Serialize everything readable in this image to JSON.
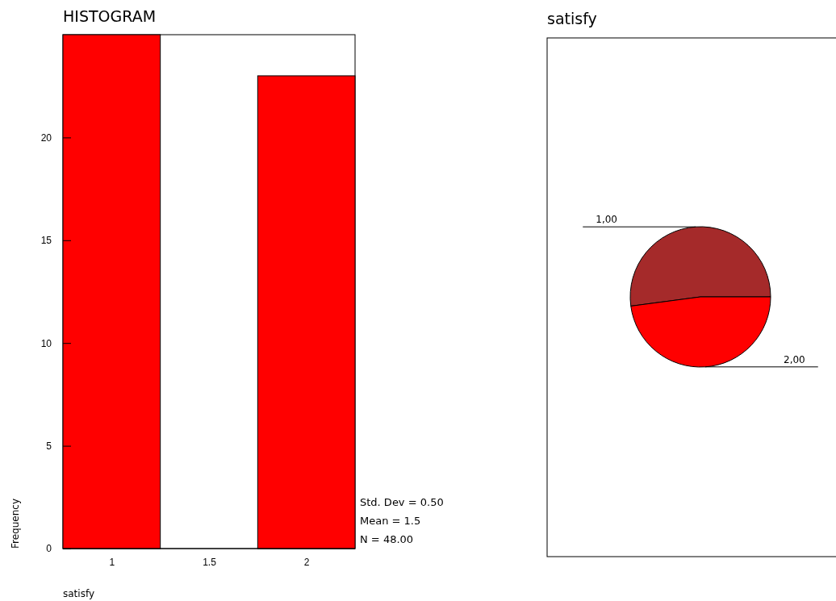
{
  "chart_data": [
    {
      "type": "histogram",
      "title": "HISTOGRAM",
      "xlabel": "satisfy",
      "ylabel": "Frequency",
      "bins": [
        0.75,
        1.25,
        1.75,
        2.25
      ],
      "values": [
        25,
        0,
        23
      ],
      "color": "#ff0000",
      "xlim": [
        0.75,
        2.25
      ],
      "xticks": [
        1,
        1.5,
        2
      ],
      "ylim": [
        0,
        25
      ],
      "yticks": [
        0,
        5,
        10,
        15,
        20
      ],
      "annotations": [
        "Std. Dev = 0.50",
        "Mean = 1.5",
        "N = 48.00"
      ]
    },
    {
      "type": "pie",
      "title": "satisfy",
      "categories": [
        "1,00",
        "2,00"
      ],
      "values": [
        52.1,
        47.9
      ],
      "colors": [
        "#a52a2a",
        "#ff0000"
      ]
    }
  ]
}
